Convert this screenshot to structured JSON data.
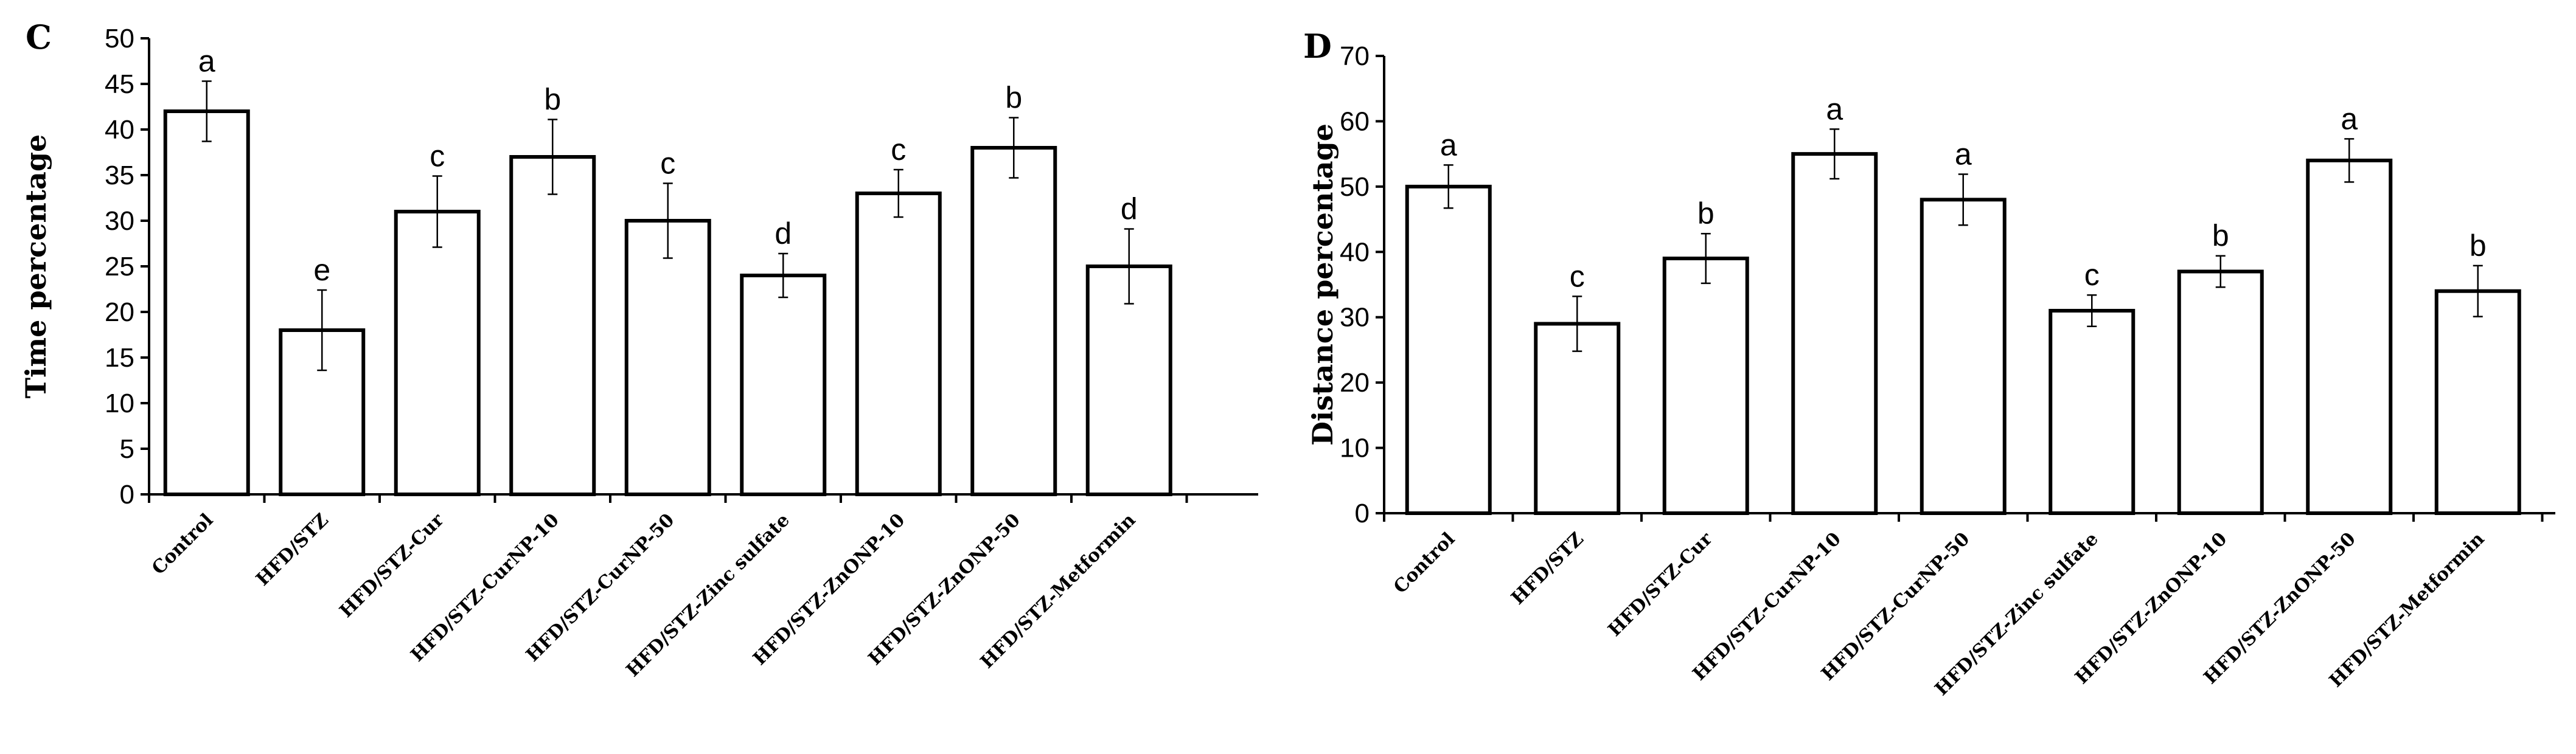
{
  "chart_data": [
    {
      "panel": "C",
      "type": "bar",
      "ylabel": "Time percentage",
      "xlabel": "",
      "ylim": [
        0,
        50
      ],
      "yticks": [
        0,
        5,
        10,
        15,
        20,
        25,
        30,
        35,
        40,
        45,
        50
      ],
      "grid": false,
      "categories": [
        "Control",
        "HFD/STZ",
        "HFD/STZ-Cur",
        "HFD/STZ-CurNP-10",
        "HFD/STZ-CurNP-50",
        "HFD/STZ-Zinc sulfate",
        "HFD/STZ-ZnONP-10",
        "HFD/STZ-ZnONP-50",
        "HFD/STZ-Metformin"
      ],
      "values": [
        42,
        18,
        31,
        37,
        30,
        24,
        33,
        38,
        25
      ],
      "errors": [
        3.3,
        4.4,
        3.9,
        4.1,
        4.1,
        2.4,
        2.6,
        3.3,
        4.1
      ],
      "significance": [
        "a",
        "e",
        "c",
        "b",
        "c",
        "d",
        "c",
        "b",
        "d"
      ]
    },
    {
      "panel": "D",
      "type": "bar",
      "ylabel": "Distance percentage",
      "xlabel": "",
      "ylim": [
        0,
        70
      ],
      "yticks": [
        0,
        10,
        20,
        30,
        40,
        50,
        60,
        70
      ],
      "grid": false,
      "categories": [
        "Control",
        "HFD/STZ",
        "HFD/STZ-Cur",
        "HFD/STZ-CurNP-10",
        "HFD/STZ-CurNP-50",
        "HFD/STZ-Zinc sulfate",
        "HFD/STZ-ZnONP-10",
        "HFD/STZ-ZnONP-50",
        "HFD/STZ-Metformin"
      ],
      "values": [
        50,
        29,
        39,
        55,
        48,
        31,
        37,
        54,
        34
      ],
      "errors": [
        3.3,
        4.2,
        3.8,
        3.8,
        3.9,
        2.4,
        2.4,
        3.3,
        3.9
      ],
      "significance": [
        "a",
        "c",
        "b",
        "a",
        "a",
        "c",
        "b",
        "a",
        "b"
      ]
    }
  ]
}
